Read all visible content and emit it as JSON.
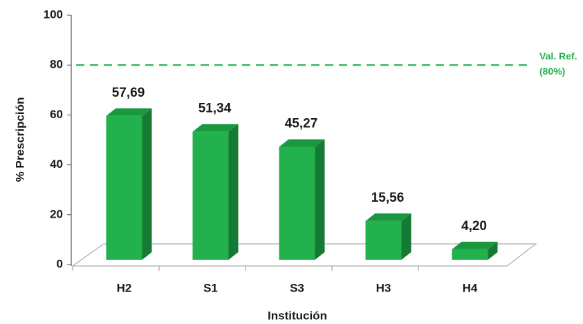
{
  "chart_data": {
    "type": "bar3d",
    "x_label": "Institución",
    "y_label": "% Prescripción",
    "categories": [
      "H2",
      "S1",
      "S3",
      "H3",
      "H4"
    ],
    "values": [
      57.69,
      51.34,
      45.27,
      15.56,
      4.2
    ],
    "value_labels": [
      "57,69",
      "51,34",
      "45,27",
      "15,56",
      "4,20"
    ],
    "color": "#22b14c",
    "ylim": [
      0,
      100
    ],
    "yticks": [
      0,
      20,
      40,
      60,
      80,
      100
    ],
    "reference_line": {
      "value": 80,
      "label": [
        "Val. Ref.",
        "(80%)"
      ],
      "color": "#22b14c"
    }
  }
}
